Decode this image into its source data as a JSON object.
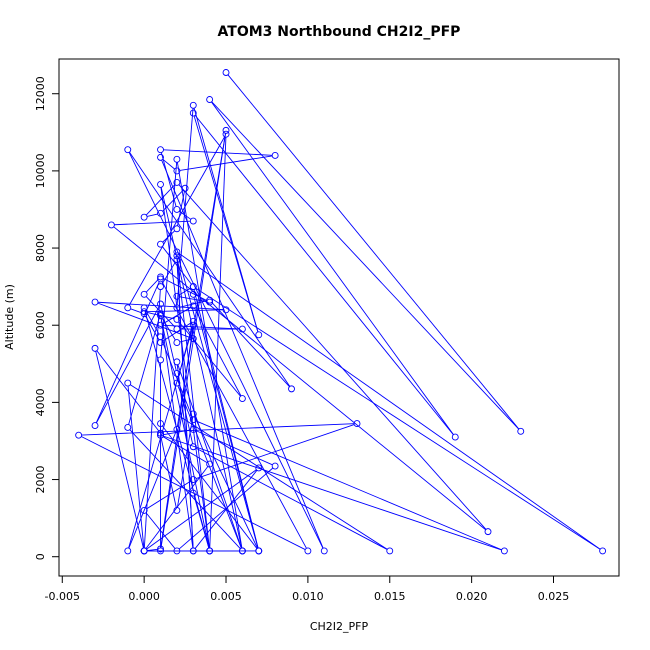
{
  "chart_data": {
    "type": "line",
    "title": "ATOM3 Northbound CH2I2_PFP",
    "xlabel": "CH2I2_PFP",
    "ylabel": "Altitude (m)",
    "xlim": [
      -0.0052,
      0.029
    ],
    "ylim": [
      -500,
      12900
    ],
    "xticks": [
      -0.005,
      0.0,
      0.005,
      0.01,
      0.015,
      0.02,
      0.025
    ],
    "xtick_labels": [
      "-0.005",
      "0.000",
      "0.005",
      "0.010",
      "0.015",
      "0.020",
      "0.025"
    ],
    "yticks": [
      0,
      2000,
      4000,
      6000,
      8000,
      10000,
      12000
    ],
    "ytick_labels": [
      "0",
      "2000",
      "4000",
      "6000",
      "8000",
      "10000",
      "12000"
    ],
    "color": "#0000ff",
    "grid": false,
    "legend": "none",
    "series": [
      {
        "x": [
          0.005,
          0.023,
          0.004,
          0.019,
          0.003,
          0.007,
          0.003,
          0.002,
          0.004,
          0.009,
          -0.001,
          0.011,
          0.001,
          0.002,
          0.008,
          0.001,
          0.002,
          0.003,
          -0.002,
          0.021,
          0.002,
          0.0,
          0.001,
          0.0025,
          0.002,
          0.001,
          0.003,
          0.007,
          0.002,
          0.028,
          0.003,
          0.002,
          0.004,
          0.001,
          0.0,
          0.002,
          0.006,
          0.001,
          0.003,
          0.006,
          0.002,
          0.0,
          0.005,
          -0.003,
          0.003,
          0.002,
          0.001,
          0.004,
          0.005,
          -0.001,
          0.0,
          0.001,
          0.003,
          0.002,
          0.006,
          0.0,
          -0.003,
          0.001,
          0.001,
          0.007,
          0.003,
          0.002,
          0.001,
          0.003,
          0.008,
          0.002,
          0.0,
          0.003,
          0.013,
          -0.004,
          0.01,
          0.001,
          -0.003,
          0.001,
          0.002,
          0.003,
          0.015,
          -0.001,
          0.0,
          0.004,
          0.001,
          0.022,
          0.003,
          0.001,
          0.0,
          0.004,
          0.003,
          0.002,
          0.006,
          -0.001,
          0.001,
          0.003,
          0.002,
          0.001,
          0.0,
          0.007,
          0.003,
          0.002,
          0.004,
          0.001,
          0.006,
          0.002,
          0.001,
          0.001,
          0.005,
          0.002,
          -0.001,
          0.003,
          0.001,
          0.0,
          0.007,
          0.003
        ],
        "y": [
          12550,
          3250,
          11850,
          3100,
          11500,
          5750,
          11700,
          6450,
          6650,
          4350,
          10550,
          150,
          10350,
          10000,
          10400,
          10550,
          9000,
          8700,
          8600,
          650,
          9700,
          8800,
          8900,
          9550,
          8500,
          8100,
          7000,
          150,
          7900,
          150,
          7000,
          6750,
          6600,
          7250,
          6800,
          5900,
          5900,
          6000,
          6500,
          4100,
          6150,
          6350,
          6400,
          6600,
          5650,
          5550,
          6250,
          150,
          10950,
          6450,
          6300,
          5550,
          6100,
          4500,
          150,
          150,
          5400,
          3200,
          3450,
          150,
          3700,
          1200,
          3150,
          3300,
          2350,
          150,
          1200,
          2000,
          3450,
          3150,
          150,
          7200,
          3400,
          6550,
          4750,
          2850,
          150,
          4500,
          150,
          2400,
          3150,
          150,
          3550,
          5700,
          6450,
          150,
          1650,
          5050,
          150,
          3350,
          6300,
          150,
          7700,
          7000,
          150,
          2300,
          150,
          7800,
          150,
          9650,
          150,
          10300,
          5100,
          150,
          11050,
          3300,
          150,
          6000,
          200,
          150,
          150,
          6800
        ]
      }
    ]
  }
}
